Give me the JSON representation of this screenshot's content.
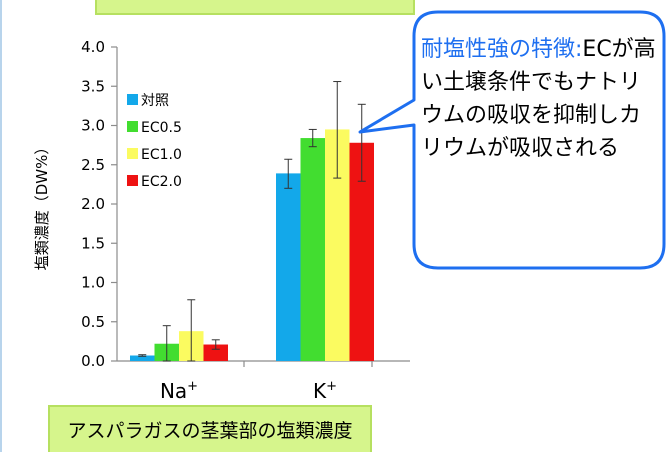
{
  "chart_data": {
    "type": "bar",
    "ylabel": "塩類濃度（DW%）",
    "ylim": [
      0,
      4.0
    ],
    "yticks": [
      "0.0",
      "0.5",
      "1.0",
      "1.5",
      "2.0",
      "2.5",
      "3.0",
      "3.5",
      "4.0"
    ],
    "categories": [
      "Na",
      "K"
    ],
    "category_superscript": "+",
    "series": [
      {
        "name": "対照",
        "color": "#13a8ea",
        "values": [
          0.07,
          2.39
        ],
        "err_low": [
          0.06,
          2.2
        ],
        "err_high": [
          0.08,
          2.57
        ]
      },
      {
        "name": "EC0.5",
        "color": "#42dd30",
        "values": [
          0.22,
          2.84
        ],
        "err_low": [
          0.0,
          2.73
        ],
        "err_high": [
          0.45,
          2.95
        ]
      },
      {
        "name": "EC1.0",
        "color": "#fbfb60",
        "values": [
          0.38,
          2.95
        ],
        "err_low": [
          0.0,
          2.33
        ],
        "err_high": [
          0.78,
          3.56
        ]
      },
      {
        "name": "EC2.0",
        "color": "#ee1212",
        "values": [
          0.21,
          2.78
        ],
        "err_low": [
          0.15,
          2.29
        ],
        "err_high": [
          0.27,
          3.27
        ]
      }
    ]
  },
  "caption": "アスパラガスの茎葉部の塩類濃度",
  "callout": {
    "title": "耐塩性強の特徴:",
    "body": "ECが高い土壌条件でもナトリウムの吸収を抑制しカリウムが吸収される"
  }
}
